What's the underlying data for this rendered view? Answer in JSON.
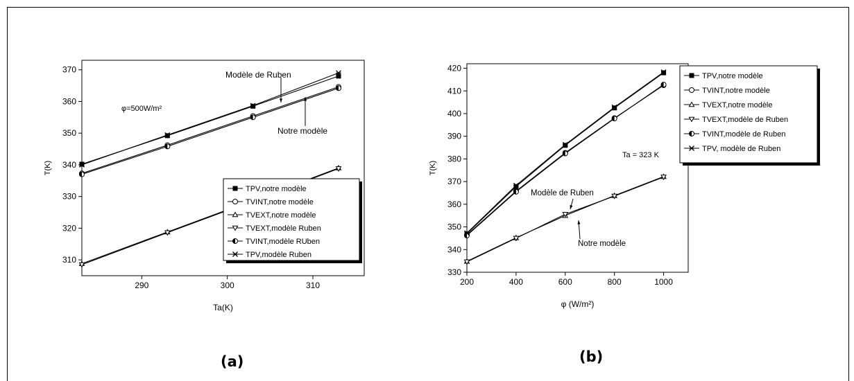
{
  "chart_data": [
    {
      "type": "line",
      "panel_label": "(a)",
      "xlabel": "Ta(K)",
      "ylabel": "T(K)",
      "xlim": [
        283,
        316
      ],
      "ylim": [
        305,
        373
      ],
      "xticks": [
        290,
        300,
        310
      ],
      "yticks": [
        310,
        320,
        330,
        340,
        350,
        360,
        370
      ],
      "annotations": [
        "φ=500W/m²",
        "Modèle de Ruben",
        "Notre modèle"
      ],
      "legend_position": "lower-right",
      "series": [
        {
          "name": "TPV,notre modèle",
          "marker": "filled-square",
          "x": [
            283,
            293,
            303,
            313
          ],
          "y": [
            340.2,
            349.2,
            358.5,
            368.0
          ]
        },
        {
          "name": "TVINT,notre modèle",
          "marker": "circle",
          "x": [
            283,
            293,
            303,
            313
          ],
          "y": [
            337.3,
            346.2,
            355.4,
            364.6
          ]
        },
        {
          "name": "TVEXT,notre modèle",
          "marker": "triangle-up",
          "x": [
            283,
            293,
            303,
            313
          ],
          "y": [
            308.8,
            318.8,
            328.8,
            339.0
          ]
        },
        {
          "name": "TVEXT,modèle Ruben",
          "marker": "triangle-down",
          "x": [
            283,
            293,
            303,
            313
          ],
          "y": [
            308.5,
            318.6,
            328.6,
            338.8
          ]
        },
        {
          "name": "TVINT,modèle RUben",
          "marker": "half-circle",
          "x": [
            283,
            293,
            303,
            313
          ],
          "y": [
            337.0,
            345.8,
            355.0,
            364.2
          ]
        },
        {
          "name": "TPV,modèle Ruben",
          "marker": "star",
          "x": [
            283,
            293,
            303,
            313
          ],
          "y": [
            340.0,
            349.4,
            358.7,
            369.0
          ]
        }
      ]
    },
    {
      "type": "line",
      "panel_label": "(b)",
      "xlabel": "φ (W/m²)",
      "ylabel": "T(K)",
      "xlim": [
        200,
        1100
      ],
      "ylim": [
        330,
        422
      ],
      "xticks": [
        200,
        400,
        600,
        800,
        1000
      ],
      "yticks": [
        330,
        340,
        350,
        360,
        370,
        380,
        390,
        400,
        410,
        420
      ],
      "annotations": [
        "Ta = 323 K",
        "Modèle de Ruben",
        "Notre modèle"
      ],
      "legend_position": "top-right",
      "series": [
        {
          "name": "TPV,notre modèle",
          "marker": "filled-square",
          "x": [
            200,
            400,
            600,
            800,
            1000
          ],
          "y": [
            347.0,
            367.8,
            386.0,
            402.5,
            418.0
          ]
        },
        {
          "name": "TVINT,notre modèle",
          "marker": "circle",
          "x": [
            200,
            400,
            600,
            800,
            1000
          ],
          "y": [
            346.5,
            365.8,
            382.7,
            398.0,
            412.5
          ]
        },
        {
          "name": "TVEXT,notre modèle",
          "marker": "triangle-up",
          "x": [
            200,
            400,
            600,
            800,
            1000
          ],
          "y": [
            334.8,
            345.2,
            355.0,
            363.8,
            372.2
          ]
        },
        {
          "name": "TVEXT,modèle  de Ruben",
          "marker": "triangle-down",
          "x": [
            200,
            400,
            600,
            800,
            1000
          ],
          "y": [
            334.6,
            345.0,
            355.6,
            363.6,
            372.0
          ]
        },
        {
          "name": "TVINT,modèle  de Ruben",
          "marker": "half-circle",
          "x": [
            200,
            400,
            600,
            800,
            1000
          ],
          "y": [
            346.2,
            365.5,
            382.4,
            397.8,
            412.8
          ]
        },
        {
          "name": "TPV, modèle  de Ruben",
          "marker": "star",
          "x": [
            200,
            400,
            600,
            800,
            1000
          ],
          "y": [
            347.3,
            368.3,
            386.3,
            402.8,
            418.3
          ]
        }
      ]
    }
  ]
}
